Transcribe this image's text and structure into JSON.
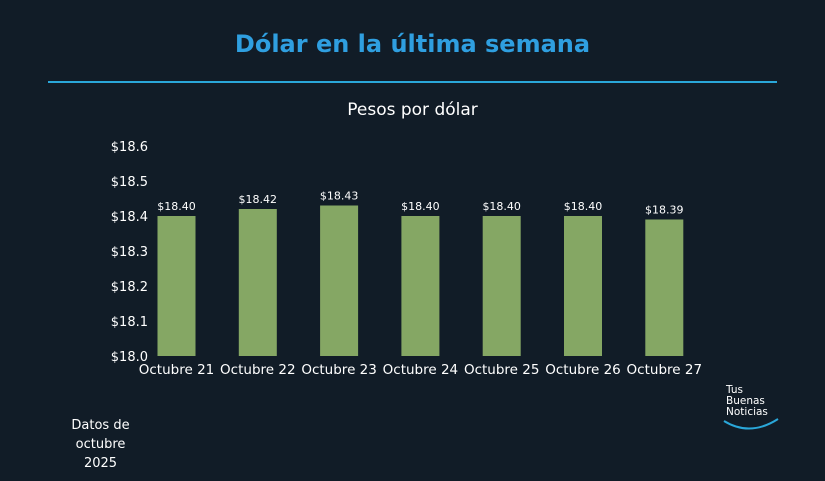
{
  "title": "Dólar en la última semana",
  "note": [
    "Datos de octubre",
    "2025"
  ],
  "logo": {
    "lines": [
      "Tus",
      "Buenas",
      "Noticias"
    ]
  },
  "colors": {
    "background": "#111c27",
    "title": "#2f9fe0",
    "rule": "#2aa7d9",
    "bar": "#85a764"
  },
  "chart_data": {
    "type": "bar",
    "title": "Pesos por dólar",
    "xlabel": "",
    "ylabel": "",
    "categories": [
      "Octubre 21",
      "Octubre 22",
      "Octubre 23",
      "Octubre 24",
      "Octubre 25",
      "Octubre 26",
      "Octubre 27"
    ],
    "values": [
      18.4,
      18.42,
      18.43,
      18.4,
      18.4,
      18.4,
      18.39
    ],
    "data_labels": [
      "$18.40",
      "$18.42",
      "$18.43",
      "$18.40",
      "$18.40",
      "$18.40",
      "$18.39"
    ],
    "ylim": [
      18.0,
      18.6
    ],
    "yticks": [
      18.0,
      18.1,
      18.2,
      18.3,
      18.4,
      18.5,
      18.6
    ],
    "ytick_labels": [
      "$18.0",
      "$18.1",
      "$18.2",
      "$18.3",
      "$18.4",
      "$18.5",
      "$18.6"
    ],
    "grid": false,
    "legend": "none"
  }
}
